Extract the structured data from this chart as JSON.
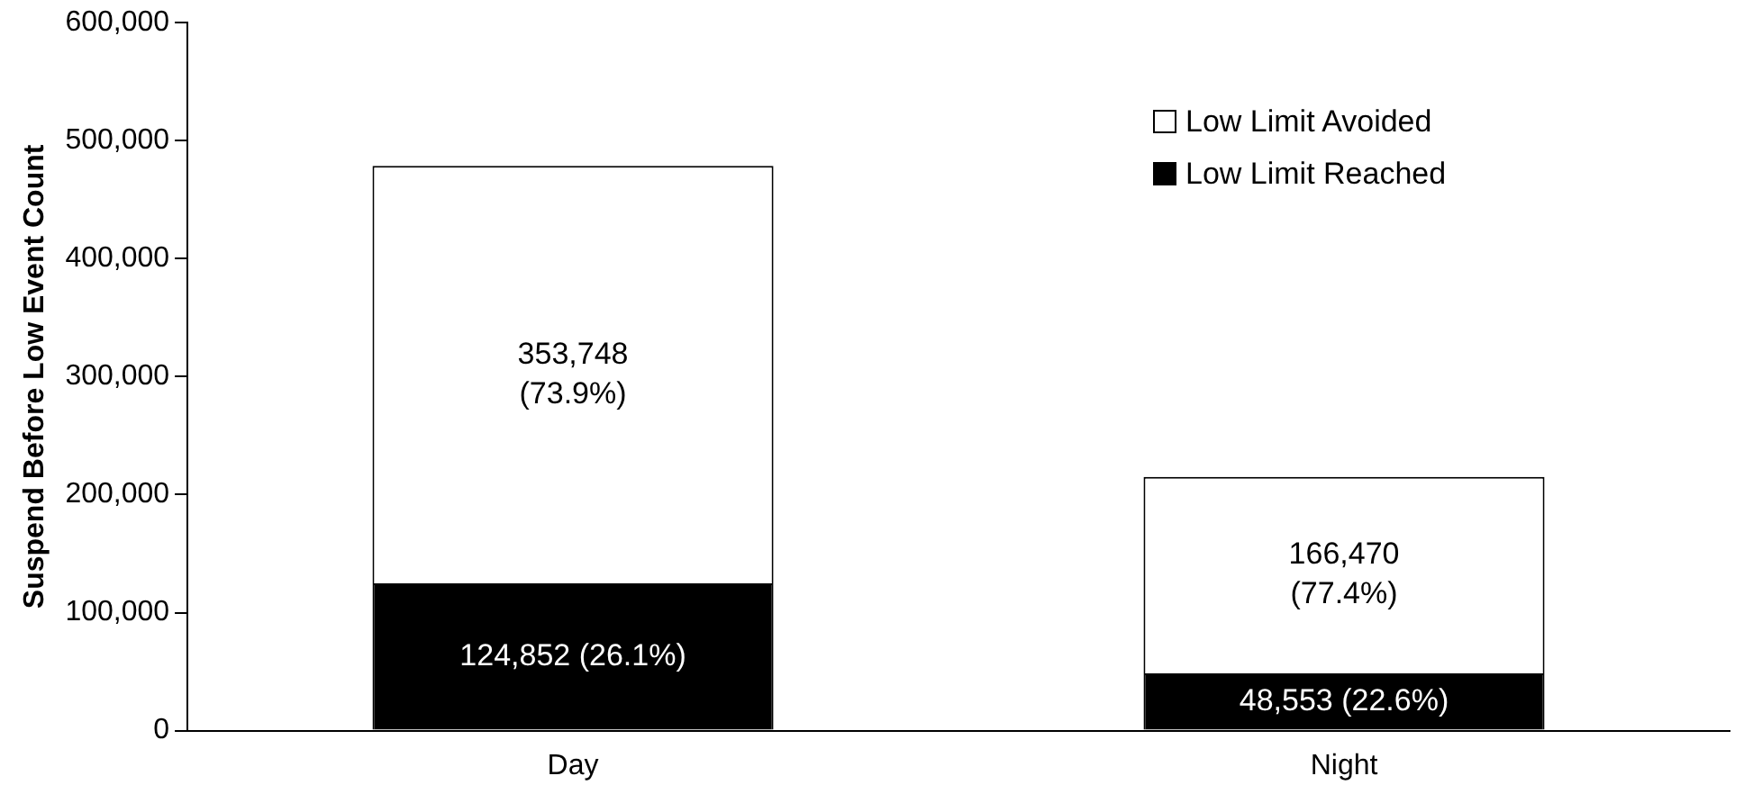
{
  "chart_data": {
    "type": "bar",
    "stacked": true,
    "ylabel": "Suspend Before Low Event Count",
    "categories": [
      "Day",
      "Night"
    ],
    "series": [
      {
        "name": "Low Limit Reached",
        "color": "#000000",
        "values": [
          124852,
          48553
        ],
        "value_labels": [
          "124,852 (26.1%)",
          "48,553 (22.6%)"
        ]
      },
      {
        "name": "Low Limit Avoided",
        "color": "#ffffff",
        "values": [
          353748,
          166470
        ],
        "value_labels": [
          "353,748\n(73.9%)",
          "166,470\n(77.4%)"
        ]
      }
    ],
    "ylim": [
      0,
      600000
    ],
    "yticks": [
      {
        "value": 0,
        "label": "0"
      },
      {
        "value": 100000,
        "label": "100,000"
      },
      {
        "value": 200000,
        "label": "200,000"
      },
      {
        "value": 300000,
        "label": "300,000"
      },
      {
        "value": 400000,
        "label": "400,000"
      },
      {
        "value": 500000,
        "label": "500,000"
      },
      {
        "value": 600000,
        "label": "600,000"
      }
    ],
    "grid": false,
    "legend": "top right"
  }
}
